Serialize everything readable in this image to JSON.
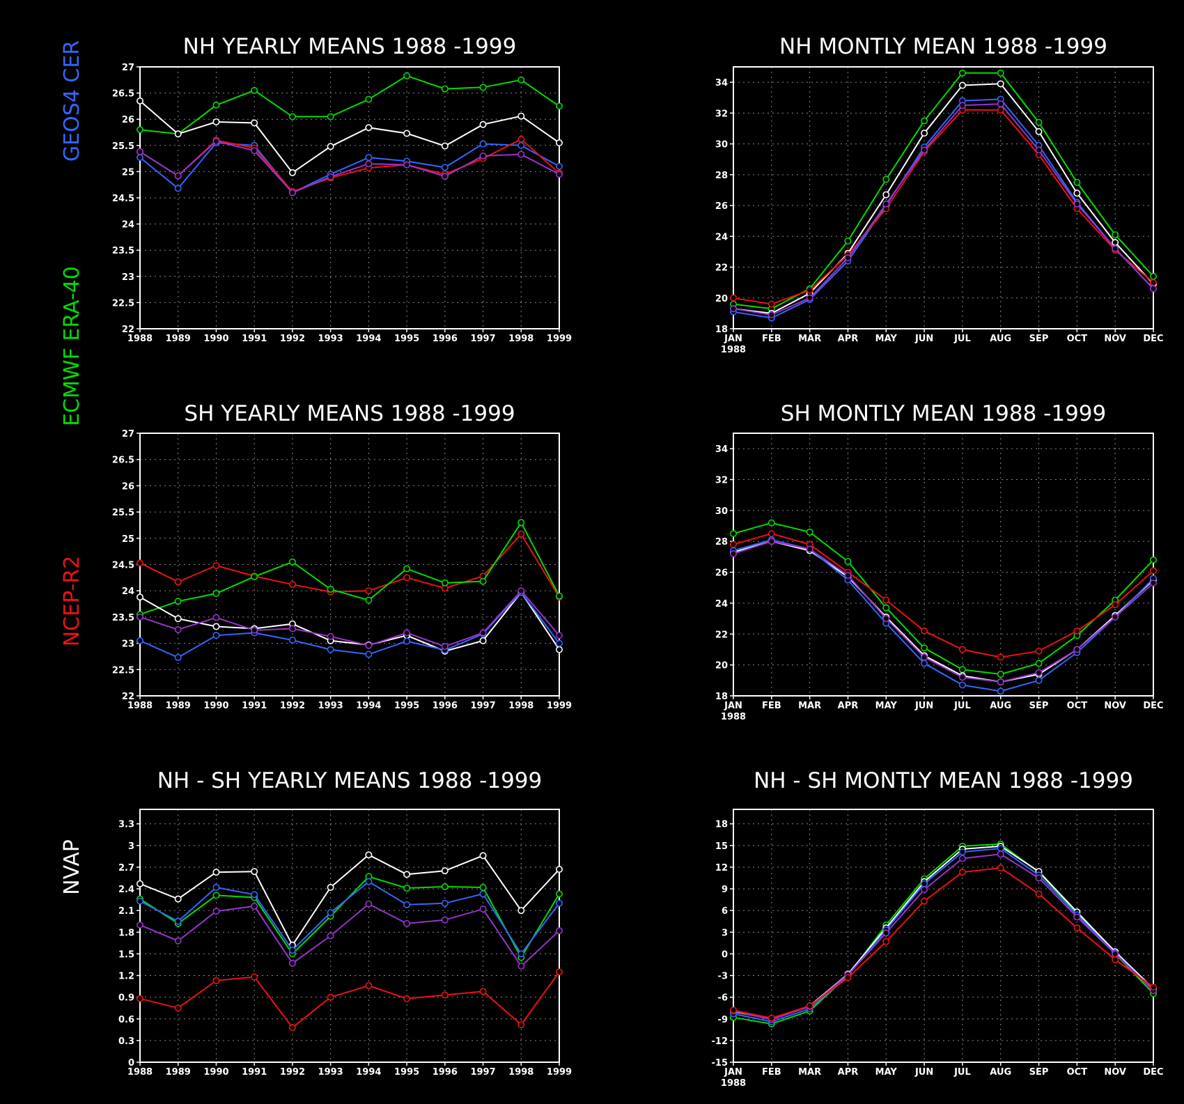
{
  "legend": [
    {
      "name": "GEOS4 CER",
      "color": "#3366ff"
    },
    {
      "name": "ECMWF ERA-40",
      "color": "#00dd00"
    },
    {
      "name": "NCEP-R2",
      "color": "#ee1111"
    },
    {
      "name": "NVAP",
      "color": "#ffffff"
    }
  ],
  "series_colors": {
    "GEOS4 CER": "#3366ff",
    "ECMWF ERA-40": "#00dd00",
    "NCEP-R2": "#ee1111",
    "NVAP": "#ffffff",
    "purple": "#9933cc"
  },
  "chart_data": [
    {
      "type": "line",
      "title": "NH YEARLY MEANS 1988 -1999",
      "x": [
        "1988",
        "1989",
        "1990",
        "1991",
        "1992",
        "1993",
        "1994",
        "1995",
        "1996",
        "1997",
        "1998",
        "1999"
      ],
      "ylim": [
        22,
        27
      ],
      "yticks": [
        "22",
        "22.5",
        "23",
        "23.5",
        "24",
        "24.5",
        "25",
        "25.5",
        "26",
        "26.5",
        "27"
      ],
      "grid": true,
      "series": [
        {
          "color": "#00dd00",
          "values": [
            25.8,
            25.72,
            26.27,
            26.55,
            26.05,
            26.05,
            26.38,
            26.83,
            26.58,
            26.61,
            26.75,
            26.25
          ]
        },
        {
          "color": "#ffffff",
          "values": [
            26.35,
            25.72,
            25.95,
            25.93,
            24.98,
            25.48,
            25.84,
            25.73,
            25.49,
            25.9,
            26.06,
            25.55
          ]
        },
        {
          "color": "#3366ff",
          "values": [
            25.27,
            24.68,
            25.55,
            25.5,
            24.6,
            24.95,
            25.27,
            25.2,
            25.08,
            25.53,
            25.5,
            25.1
          ]
        },
        {
          "color": "#ee1111",
          "values": [
            25.38,
            24.92,
            25.6,
            25.45,
            24.62,
            24.88,
            25.07,
            25.13,
            24.95,
            25.25,
            25.62,
            24.97
          ]
        },
        {
          "color": "#9933cc",
          "values": [
            25.38,
            24.92,
            25.58,
            25.4,
            24.6,
            24.9,
            25.15,
            25.13,
            24.91,
            25.3,
            25.33,
            24.95
          ]
        }
      ]
    },
    {
      "type": "line",
      "title": "NH MONTLY MEAN 1988 -1999",
      "x": [
        "JAN",
        "FEB",
        "MAR",
        "APR",
        "MAY",
        "JUN",
        "JUL",
        "AUG",
        "SEP",
        "OCT",
        "NOV",
        "DEC"
      ],
      "x_sublabel": "1988",
      "ylim": [
        18,
        35
      ],
      "yticks": [
        "18",
        "20",
        "22",
        "24",
        "26",
        "28",
        "30",
        "32",
        "34"
      ],
      "grid": true,
      "series": [
        {
          "color": "#00dd00",
          "values": [
            19.6,
            19.3,
            20.6,
            23.7,
            27.7,
            31.5,
            34.6,
            34.6,
            31.4,
            27.5,
            24.1,
            21.4
          ]
        },
        {
          "color": "#ffffff",
          "values": [
            19.3,
            19.0,
            20.3,
            22.9,
            26.7,
            30.7,
            33.8,
            33.9,
            30.8,
            26.8,
            23.6,
            20.9
          ]
        },
        {
          "color": "#3366ff",
          "values": [
            19.1,
            18.7,
            19.9,
            22.4,
            26.0,
            29.8,
            32.8,
            32.9,
            29.9,
            26.2,
            23.2,
            20.6
          ]
        },
        {
          "color": "#ee1111",
          "values": [
            20.0,
            19.6,
            20.5,
            22.8,
            25.8,
            29.5,
            32.2,
            32.2,
            29.3,
            25.8,
            23.1,
            21.0
          ]
        },
        {
          "color": "#9933cc",
          "values": [
            19.3,
            18.9,
            20.0,
            22.6,
            26.1,
            29.6,
            32.5,
            32.6,
            29.6,
            26.1,
            23.2,
            20.6
          ]
        }
      ]
    },
    {
      "type": "line",
      "title": "SH YEARLY MEANS 1988 -1999",
      "x": [
        "1988",
        "1989",
        "1990",
        "1991",
        "1992",
        "1993",
        "1994",
        "1995",
        "1996",
        "1997",
        "1998",
        "1999"
      ],
      "ylim": [
        22,
        27
      ],
      "yticks": [
        "22",
        "22.5",
        "23",
        "23.5",
        "24",
        "24.5",
        "25",
        "25.5",
        "26",
        "26.5",
        "27"
      ],
      "grid": true,
      "series": [
        {
          "color": "#ee1111",
          "values": [
            24.53,
            24.17,
            24.48,
            24.28,
            24.12,
            23.98,
            24.0,
            24.25,
            24.05,
            24.28,
            25.08,
            23.88
          ]
        },
        {
          "color": "#00dd00",
          "values": [
            23.55,
            23.8,
            23.95,
            24.27,
            24.55,
            24.03,
            23.82,
            24.42,
            24.15,
            24.18,
            25.3,
            23.9
          ]
        },
        {
          "color": "#ffffff",
          "values": [
            23.88,
            23.47,
            23.32,
            23.28,
            23.37,
            23.05,
            22.97,
            23.15,
            22.85,
            23.05,
            23.97,
            22.88
          ]
        },
        {
          "color": "#3366ff",
          "values": [
            23.05,
            22.73,
            23.15,
            23.2,
            23.06,
            22.88,
            22.79,
            23.04,
            22.87,
            23.18,
            23.97,
            23.0
          ]
        },
        {
          "color": "#9933cc",
          "values": [
            23.5,
            23.26,
            23.49,
            23.25,
            23.28,
            23.13,
            22.96,
            23.2,
            22.94,
            23.2,
            24.0,
            23.15
          ]
        }
      ]
    },
    {
      "type": "line",
      "title": "SH MONTLY MEAN 1988 -1999",
      "x": [
        "JAN",
        "FEB",
        "MAR",
        "APR",
        "MAY",
        "JUN",
        "JUL",
        "AUG",
        "SEP",
        "OCT",
        "NOV",
        "DEC"
      ],
      "x_sublabel": "1988",
      "ylim": [
        18,
        35
      ],
      "yticks": [
        "18",
        "20",
        "22",
        "24",
        "26",
        "28",
        "30",
        "32",
        "34"
      ],
      "grid": true,
      "series": [
        {
          "color": "#00dd00",
          "values": [
            28.5,
            29.2,
            28.6,
            26.7,
            23.7,
            21.1,
            19.7,
            19.4,
            20.1,
            21.9,
            24.2,
            26.8
          ]
        },
        {
          "color": "#ee1111",
          "values": [
            27.8,
            28.5,
            27.8,
            26.0,
            24.2,
            22.2,
            21.0,
            20.5,
            20.9,
            22.2,
            23.9,
            26.1
          ]
        },
        {
          "color": "#ffffff",
          "values": [
            27.3,
            28.0,
            27.4,
            25.7,
            23.1,
            20.6,
            19.3,
            18.9,
            19.4,
            21.0,
            23.2,
            25.5
          ]
        },
        {
          "color": "#3366ff",
          "values": [
            27.4,
            28.1,
            27.5,
            25.5,
            22.7,
            20.1,
            18.7,
            18.3,
            19.0,
            20.8,
            23.1,
            25.6
          ]
        },
        {
          "color": "#9933cc",
          "values": [
            27.2,
            28.0,
            27.5,
            25.8,
            23.0,
            20.5,
            19.2,
            18.9,
            19.5,
            21.0,
            23.1,
            25.3
          ]
        }
      ]
    },
    {
      "type": "line",
      "title": "NH - SH YEARLY MEANS 1988 -1999",
      "x": [
        "1988",
        "1989",
        "1990",
        "1991",
        "1992",
        "1993",
        "1994",
        "1995",
        "1996",
        "1997",
        "1998",
        "1999"
      ],
      "ylim": [
        0,
        3.5
      ],
      "yticks": [
        "0",
        "0.3",
        "0.6",
        "0.9",
        "1.2",
        "1.5",
        "1.8",
        "2.1",
        "2.4",
        "2.7",
        "3",
        "3.3"
      ],
      "grid": true,
      "series": [
        {
          "color": "#ffffff",
          "values": [
            2.47,
            2.26,
            2.63,
            2.64,
            1.62,
            2.42,
            2.87,
            2.6,
            2.65,
            2.86,
            2.1,
            2.67
          ]
        },
        {
          "color": "#00dd00",
          "values": [
            2.26,
            1.92,
            2.31,
            2.28,
            1.5,
            2.02,
            2.57,
            2.41,
            2.43,
            2.42,
            1.45,
            2.33
          ]
        },
        {
          "color": "#3366ff",
          "values": [
            2.23,
            1.95,
            2.42,
            2.32,
            1.55,
            2.07,
            2.5,
            2.18,
            2.2,
            2.33,
            1.5,
            2.2
          ]
        },
        {
          "color": "#9933cc",
          "values": [
            1.9,
            1.68,
            2.09,
            2.16,
            1.37,
            1.75,
            2.19,
            1.92,
            1.97,
            2.12,
            1.33,
            1.82
          ]
        },
        {
          "color": "#ee1111",
          "values": [
            0.88,
            0.75,
            1.13,
            1.18,
            0.48,
            0.9,
            1.06,
            0.88,
            0.93,
            0.98,
            0.52,
            1.25
          ]
        }
      ]
    },
    {
      "type": "line",
      "title": "NH - SH MONTLY MEAN 1988 -1999",
      "x": [
        "JAN",
        "FEB",
        "MAR",
        "APR",
        "MAY",
        "JUN",
        "JUL",
        "AUG",
        "SEP",
        "OCT",
        "NOV",
        "DEC"
      ],
      "x_sublabel": "1988",
      "ylim": [
        -15,
        20
      ],
      "yticks": [
        "-15",
        "-12",
        "-9",
        "-6",
        "-3",
        "0",
        "3",
        "6",
        "9",
        "12",
        "15",
        "18"
      ],
      "grid": true,
      "series": [
        {
          "color": "#00dd00",
          "values": [
            -8.8,
            -9.7,
            -7.9,
            -3.0,
            4.0,
            10.4,
            14.9,
            15.2,
            11.3,
            5.6,
            0.0,
            -5.5
          ]
        },
        {
          "color": "#ffffff",
          "values": [
            -8.0,
            -9.0,
            -7.2,
            -2.8,
            3.6,
            10.0,
            14.5,
            14.9,
            11.4,
            5.8,
            0.3,
            -4.8
          ]
        },
        {
          "color": "#3366ff",
          "values": [
            -8.3,
            -9.4,
            -7.6,
            -3.0,
            3.3,
            9.7,
            14.1,
            14.6,
            10.9,
            5.4,
            0.1,
            -5.0
          ]
        },
        {
          "color": "#9933cc",
          "values": [
            -7.9,
            -9.1,
            -7.3,
            -2.9,
            2.9,
            8.9,
            13.2,
            13.8,
            10.5,
            5.1,
            0.0,
            -5.1
          ]
        },
        {
          "color": "#ee1111",
          "values": [
            -7.8,
            -8.9,
            -7.2,
            -3.3,
            1.7,
            7.3,
            11.3,
            11.9,
            8.3,
            3.6,
            -0.8,
            -4.6
          ]
        }
      ]
    }
  ]
}
